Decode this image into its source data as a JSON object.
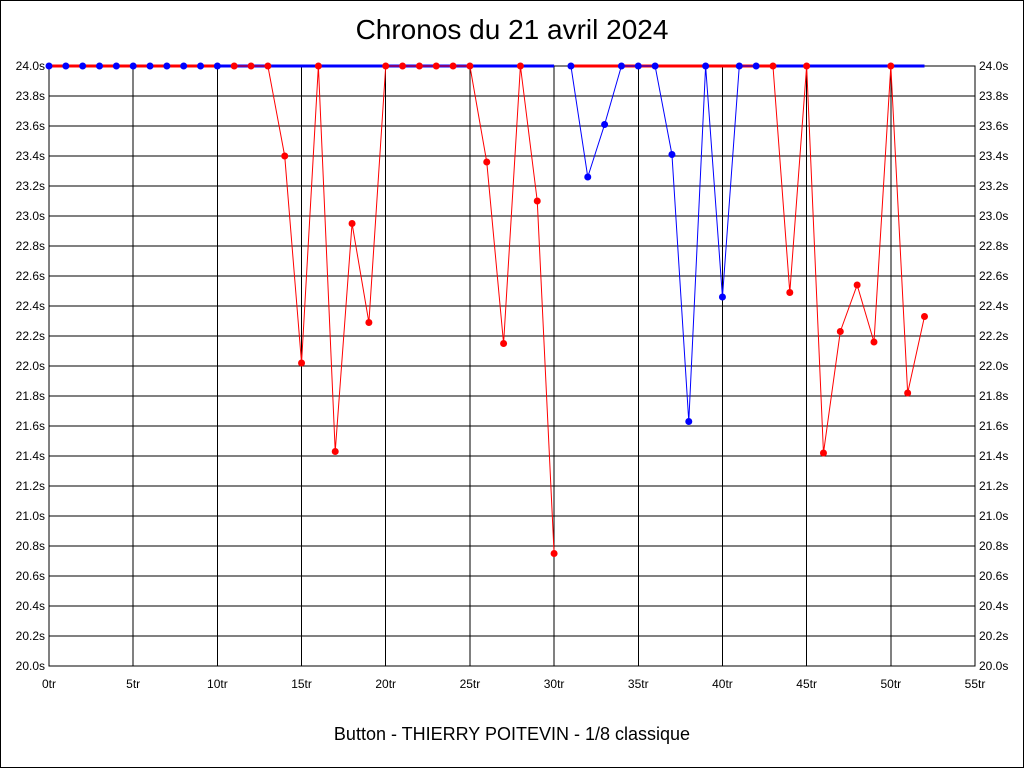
{
  "chart_data": {
    "type": "line",
    "title": "Chronos du 21 avril 2024",
    "subtitle": "Button - THIERRY POITEVIN - 1/8 classique",
    "xlim": [
      0,
      55
    ],
    "ylim": [
      20.0,
      24.0
    ],
    "x_ticks": [
      0,
      5,
      10,
      15,
      20,
      25,
      30,
      35,
      40,
      45,
      50,
      55
    ],
    "x_tick_labels": [
      "0tr",
      "5tr",
      "10tr",
      "15tr",
      "20tr",
      "25tr",
      "30tr",
      "35tr",
      "40tr",
      "45tr",
      "50tr",
      "55tr"
    ],
    "y_ticks": [
      20.0,
      20.2,
      20.4,
      20.6,
      20.8,
      21.0,
      21.2,
      21.4,
      21.6,
      21.8,
      22.0,
      22.2,
      22.4,
      22.6,
      22.8,
      23.0,
      23.2,
      23.4,
      23.6,
      23.8,
      24.0
    ],
    "y_tick_labels": [
      "20.0s",
      "20.2s",
      "20.4s",
      "20.6s",
      "20.8s",
      "21.0s",
      "21.2s",
      "21.4s",
      "21.6s",
      "21.8s",
      "22.0s",
      "22.2s",
      "22.4s",
      "22.6s",
      "22.8s",
      "23.0s",
      "23.2s",
      "23.4s",
      "23.6s",
      "23.8s",
      "24.0s"
    ],
    "grid": true,
    "reference_line": {
      "y": 24.0,
      "segments": [
        {
          "from": 0,
          "to": 10,
          "color": "#ff0000"
        },
        {
          "from": 10,
          "to": 30,
          "color": "#0000ff"
        },
        {
          "from": 31,
          "to": 43,
          "color": "#ff0000"
        },
        {
          "from": 43,
          "to": 52,
          "color": "#0000ff"
        }
      ]
    },
    "series": [
      {
        "color": "#ff0000",
        "points": [
          [
            0,
            24.0
          ],
          [
            1,
            24.0
          ],
          [
            2,
            24.0
          ],
          [
            3,
            24.0
          ],
          [
            4,
            24.0
          ],
          [
            5,
            24.0
          ],
          [
            6,
            24.0
          ],
          [
            7,
            24.0
          ],
          [
            8,
            24.0
          ],
          [
            9,
            24.0
          ],
          [
            10,
            24.0
          ]
        ],
        "marker_color": "#0000ff"
      },
      {
        "color": "#ff0000",
        "points": [
          [
            11,
            24.0
          ],
          [
            12,
            24.0
          ],
          [
            13,
            24.0
          ],
          [
            14,
            23.4
          ],
          [
            15,
            22.02
          ],
          [
            16,
            24.0
          ],
          [
            17,
            21.43
          ],
          [
            18,
            22.95
          ],
          [
            19,
            22.29
          ],
          [
            20,
            24.0
          ],
          [
            21,
            24.0
          ],
          [
            22,
            24.0
          ],
          [
            23,
            24.0
          ],
          [
            24,
            24.0
          ],
          [
            25,
            24.0
          ],
          [
            26,
            23.36
          ],
          [
            27,
            22.15
          ],
          [
            28,
            24.0
          ],
          [
            29,
            23.1
          ],
          [
            30,
            20.75
          ]
        ],
        "marker_color": "#ff0000"
      },
      {
        "color": "#0000ff",
        "points": [
          [
            31,
            24.0
          ],
          [
            32,
            23.26
          ],
          [
            33,
            23.61
          ],
          [
            34,
            24.0
          ],
          [
            35,
            24.0
          ],
          [
            36,
            24.0
          ],
          [
            37,
            23.41
          ],
          [
            38,
            21.63
          ],
          [
            39,
            24.0
          ],
          [
            40,
            22.46
          ],
          [
            41,
            24.0
          ],
          [
            42,
            24.0
          ]
        ],
        "marker_color": "#0000ff"
      },
      {
        "color": "#ff0000",
        "points": [
          [
            43,
            24.0
          ],
          [
            44,
            22.49
          ],
          [
            45,
            24.0
          ],
          [
            46,
            21.42
          ],
          [
            47,
            22.23
          ],
          [
            48,
            22.54
          ],
          [
            49,
            22.16
          ],
          [
            50,
            24.0
          ],
          [
            51,
            21.82
          ],
          [
            52,
            22.33
          ]
        ],
        "marker_color": "#ff0000"
      }
    ]
  }
}
